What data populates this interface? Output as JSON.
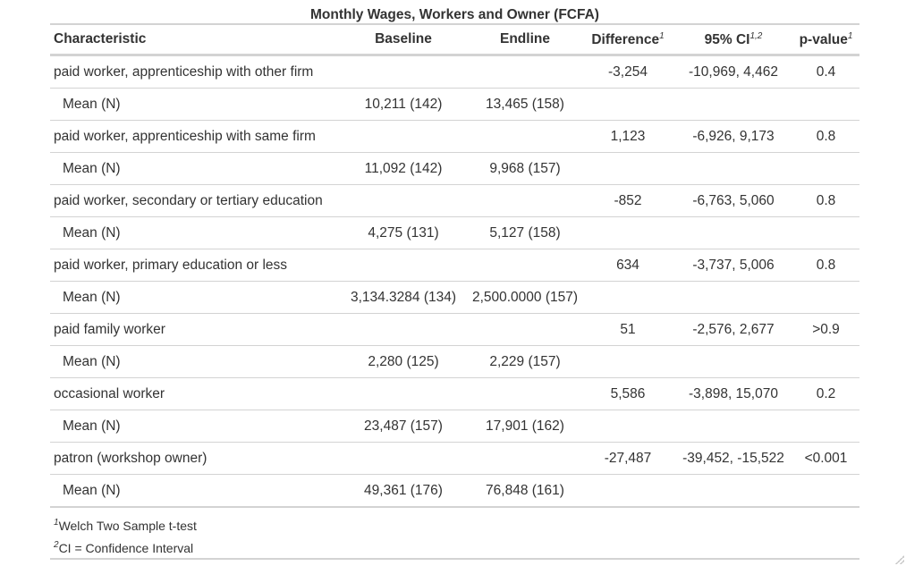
{
  "table": {
    "title": "Monthly Wages, Workers and Owner (FCFA)",
    "headers": {
      "characteristic": "Characteristic",
      "baseline": "Baseline",
      "endline": "Endline",
      "difference": "Difference",
      "difference_sup": "1",
      "ci": "95% CI",
      "ci_sup": "1,2",
      "pvalue": "p-value",
      "pvalue_sup": "1"
    },
    "groups": [
      {
        "label": "paid worker, apprenticeship with other firm",
        "difference": "-3,254",
        "ci": "-10,969, 4,462",
        "pvalue": "0.4",
        "sub_label": "Mean (N)",
        "baseline": "10,211 (142)",
        "endline": "13,465 (158)"
      },
      {
        "label": "paid worker, apprenticeship with same firm",
        "difference": "1,123",
        "ci": "-6,926, 9,173",
        "pvalue": "0.8",
        "sub_label": "Mean (N)",
        "baseline": "11,092 (142)",
        "endline": "9,968 (157)"
      },
      {
        "label": "paid worker, secondary or tertiary education",
        "difference": "-852",
        "ci": "-6,763, 5,060",
        "pvalue": "0.8",
        "sub_label": "Mean (N)",
        "baseline": "4,275 (131)",
        "endline": "5,127 (158)"
      },
      {
        "label": "paid worker, primary education or less",
        "difference": "634",
        "ci": "-3,737, 5,006",
        "pvalue": "0.8",
        "sub_label": "Mean (N)",
        "baseline": "3,134.3284 (134)",
        "endline": "2,500.0000 (157)"
      },
      {
        "label": "paid family worker",
        "difference": "51",
        "ci": "-2,576, 2,677",
        "pvalue": ">0.9",
        "sub_label": "Mean (N)",
        "baseline": "2,280 (125)",
        "endline": "2,229 (157)"
      },
      {
        "label": "occasional worker",
        "difference": "5,586",
        "ci": "-3,898, 15,070",
        "pvalue": "0.2",
        "sub_label": "Mean (N)",
        "baseline": "23,487 (157)",
        "endline": "17,901 (162)"
      },
      {
        "label": "patron (workshop owner)",
        "difference": "-27,487",
        "ci": "-39,452, -15,522",
        "pvalue": "<0.001",
        "sub_label": "Mean (N)",
        "baseline": "49,361 (176)",
        "endline": "76,848 (161)"
      }
    ],
    "footnotes": [
      {
        "marker": "1",
        "text": "Welch Two Sample t-test"
      },
      {
        "marker": "2",
        "text": "CI = Confidence Interval"
      }
    ]
  }
}
